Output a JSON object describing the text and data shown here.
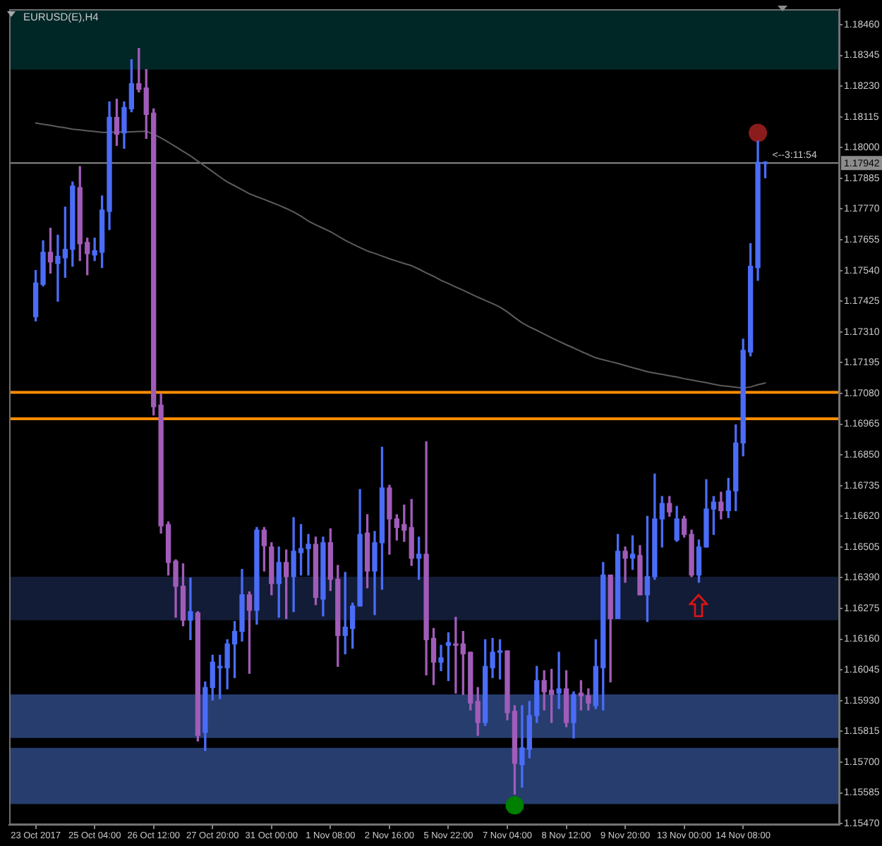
{
  "chart_data": {
    "type": "candlestick",
    "title": "EURUSD(E),H4",
    "categories": [
      "23 Oct 2017",
      null,
      null,
      null,
      null,
      null,
      null,
      null,
      "25 Oct 04:00",
      null,
      null,
      null,
      null,
      null,
      null,
      null,
      "26 Oct 12:00",
      null,
      null,
      null,
      null,
      null,
      null,
      null,
      "27 Oct 20:00",
      null,
      null,
      null,
      null,
      null,
      null,
      null,
      "31 Oct 00:00",
      null,
      null,
      null,
      null,
      null,
      null,
      null,
      "1 Nov 08:00",
      null,
      null,
      null,
      null,
      null,
      null,
      null,
      "2 Nov 16:00",
      null,
      null,
      null,
      null,
      null,
      null,
      null,
      "5 Nov 22:00",
      null,
      null,
      null,
      null,
      null,
      null,
      null,
      "7 Nov 04:00",
      null,
      null,
      null,
      null,
      null,
      null,
      null,
      "8 Nov 12:00",
      null,
      null,
      null,
      null,
      null,
      null,
      null,
      "9 Nov 20:00",
      null,
      null,
      null,
      null,
      null,
      null,
      null,
      "13 Nov 00:00",
      null,
      null,
      null,
      null,
      null,
      null,
      null,
      "14 Nov 08:00",
      null,
      null,
      null
    ],
    "ohlc": [
      [
        1.17367,
        1.1754,
        1.17351,
        1.17493
      ],
      [
        1.17488,
        1.17651,
        1.17482,
        1.17608
      ],
      [
        1.17608,
        1.17698,
        1.1753,
        1.17572
      ],
      [
        1.17566,
        1.17672,
        1.17425,
        1.17593
      ],
      [
        1.17587,
        1.17777,
        1.17514,
        1.17619
      ],
      [
        1.17619,
        1.17871,
        1.17556,
        1.17856
      ],
      [
        1.1785,
        1.17929,
        1.17577,
        1.1764
      ],
      [
        1.17645,
        1.17661,
        1.17524,
        1.17603
      ],
      [
        1.17598,
        1.17661,
        1.17577,
        1.17614
      ],
      [
        1.17608,
        1.17819,
        1.17551,
        1.17766
      ],
      [
        1.17761,
        1.18171,
        1.17693,
        1.18113
      ],
      [
        1.18113,
        1.18181,
        1.18008,
        1.1805
      ],
      [
        1.18055,
        1.18171,
        1.17997,
        1.1815
      ],
      [
        1.18145,
        1.18329,
        1.18134,
        1.18239
      ],
      [
        1.18239,
        1.18371,
        1.18208,
        1.18218
      ],
      [
        1.18223,
        1.18292,
        1.18034,
        1.18124
      ],
      [
        1.18129,
        1.18145,
        1.16999,
        1.1703
      ],
      [
        1.17036,
        1.17078,
        1.16557,
        1.16584
      ],
      [
        1.16589,
        1.16599,
        1.164,
        1.16447
      ],
      [
        1.16452,
        1.16457,
        1.16242,
        1.16358
      ],
      [
        1.16358,
        1.16442,
        1.1621,
        1.16231
      ],
      [
        1.16231,
        1.16389,
        1.16158,
        1.16263
      ],
      [
        1.16258,
        1.16263,
        1.15779,
        1.158
      ],
      [
        1.15811,
        1.16,
        1.15743,
        1.15979
      ],
      [
        1.15979,
        1.161,
        1.15932,
        1.16074
      ],
      [
        1.16053,
        1.161,
        1.15937,
        1.16058
      ],
      [
        1.16053,
        1.16158,
        1.15974,
        1.16142
      ],
      [
        1.16142,
        1.16226,
        1.16016,
        1.16189
      ],
      [
        1.16189,
        1.16421,
        1.16153,
        1.16326
      ],
      [
        1.16326,
        1.16337,
        1.16032,
        1.16268
      ],
      [
        1.16268,
        1.16578,
        1.16216,
        1.16568
      ],
      [
        1.16568,
        1.16578,
        1.16415,
        1.1651
      ],
      [
        1.16505,
        1.16521,
        1.16326,
        1.16368
      ],
      [
        1.16368,
        1.16505,
        1.16242,
        1.16447
      ],
      [
        1.16447,
        1.16494,
        1.16237,
        1.16394
      ],
      [
        1.16394,
        1.16615,
        1.16263,
        1.16489
      ],
      [
        1.16484,
        1.16589,
        1.164,
        1.16499
      ],
      [
        1.16499,
        1.16552,
        1.164,
        1.16515
      ],
      [
        1.16515,
        1.16542,
        1.16289,
        1.16316
      ],
      [
        1.1631,
        1.16542,
        1.16247,
        1.16521
      ],
      [
        1.16521,
        1.16573,
        1.16342,
        1.16384
      ],
      [
        1.16384,
        1.16436,
        1.16058,
        1.16174
      ],
      [
        1.16174,
        1.1641,
        1.16105,
        1.16205
      ],
      [
        1.162,
        1.16295,
        1.16126,
        1.16284
      ],
      [
        1.16284,
        1.1672,
        1.16284,
        1.16552
      ],
      [
        1.16557,
        1.16626,
        1.16352,
        1.16415
      ],
      [
        1.16415,
        1.16563,
        1.16252,
        1.16521
      ],
      [
        1.16521,
        1.16878,
        1.16347,
        1.16726
      ],
      [
        1.16726,
        1.16736,
        1.16478,
        1.1661
      ],
      [
        1.1661,
        1.16626,
        1.16531,
        1.16578
      ],
      [
        1.16589,
        1.16662,
        1.16526,
        1.16568
      ],
      [
        1.16578,
        1.16683,
        1.16436,
        1.16463
      ],
      [
        1.16463,
        1.16542,
        1.16384,
        1.16478
      ],
      [
        1.16478,
        1.16899,
        1.16026,
        1.16158
      ],
      [
        1.16163,
        1.162,
        1.1599,
        1.16074
      ],
      [
        1.16074,
        1.16137,
        1.16042,
        1.1609
      ],
      [
        1.16137,
        1.16184,
        1.16005,
        1.16147
      ],
      [
        1.16142,
        1.16242,
        1.15958,
        1.16137
      ],
      [
        1.16142,
        1.16189,
        1.15953,
        1.16105
      ],
      [
        1.16111,
        1.16111,
        1.15895,
        1.15921
      ],
      [
        1.15927,
        1.15979,
        1.158,
        1.15848
      ],
      [
        1.15848,
        1.16158,
        1.15837,
        1.16058
      ],
      [
        1.16053,
        1.16163,
        1.16016,
        1.16111
      ],
      [
        1.16111,
        1.16158,
        1.16011,
        1.16116
      ],
      [
        1.16116,
        1.16116,
        1.15858,
        1.15885
      ],
      [
        1.1589,
        1.15911,
        1.1558,
        1.15695
      ],
      [
        1.1569,
        1.15911,
        1.15606,
        1.15753
      ],
      [
        1.15748,
        1.15927,
        1.15716,
        1.15874
      ],
      [
        1.15874,
        1.16058,
        1.15848,
        1.16005
      ],
      [
        1.16005,
        1.16042,
        1.15895,
        1.15963
      ],
      [
        1.15969,
        1.16047,
        1.15848,
        1.15953
      ],
      [
        1.15958,
        1.16111,
        1.159,
        1.15974
      ],
      [
        1.15974,
        1.16042,
        1.15832,
        1.15848
      ],
      [
        1.15848,
        1.15963,
        1.1579,
        1.15953
      ],
      [
        1.15958,
        1.16005,
        1.15895,
        1.15948
      ],
      [
        1.15948,
        1.15974,
        1.15895,
        1.15921
      ],
      [
        1.15911,
        1.16158,
        1.159,
        1.16058
      ],
      [
        1.16053,
        1.16447,
        1.15895,
        1.164
      ],
      [
        1.164,
        1.164,
        1.16,
        1.16237
      ],
      [
        1.16237,
        1.16552,
        1.16237,
        1.16489
      ],
      [
        1.16489,
        1.16505,
        1.16373,
        1.16463
      ],
      [
        1.16463,
        1.16547,
        1.16421,
        1.16478
      ],
      [
        1.16473,
        1.1651,
        1.16326,
        1.16326
      ],
      [
        1.16326,
        1.1662,
        1.16226,
        1.16394
      ],
      [
        1.16394,
        1.16778,
        1.16384,
        1.1661
      ],
      [
        1.1661,
        1.16694,
        1.16505,
        1.16668
      ],
      [
        1.16668,
        1.16694,
        1.1662,
        1.16636
      ],
      [
        1.16531,
        1.16657,
        1.16526,
        1.1661
      ],
      [
        1.1661,
        1.1662,
        1.16542,
        1.16552
      ],
      [
        1.16552,
        1.16568,
        1.16394,
        1.164
      ],
      [
        1.164,
        1.16531,
        1.16373,
        1.16505
      ],
      [
        1.16505,
        1.16757,
        1.16505,
        1.16647
      ],
      [
        1.16647,
        1.16694,
        1.16552,
        1.16673
      ],
      [
        1.16673,
        1.1671,
        1.1661,
        1.16641
      ],
      [
        1.16641,
        1.16762,
        1.16615,
        1.16715
      ],
      [
        1.16715,
        1.16962,
        1.16641,
        1.16894
      ],
      [
        1.16894,
        1.17283,
        1.16846,
        1.17241
      ],
      [
        1.17235,
        1.1764,
        1.1722,
        1.17556
      ],
      [
        1.17551,
        1.18024,
        1.17503,
        1.17945
      ],
      [
        1.1794,
        1.17947,
        1.17887,
        1.17942
      ]
    ],
    "colors": [
      "#4a6cf7",
      "#4a6cf7",
      "#a05cb8",
      "#4a6cf7",
      "#4a6cf7",
      "#4a6cf7",
      "#a05cb8",
      "#a05cb8",
      "#4a6cf7",
      "#4a6cf7",
      "#4a6cf7",
      "#a05cb8",
      "#4a6cf7",
      "#4a6cf7",
      "#a05cb8",
      "#a05cb8",
      "#a05cb8",
      "#a05cb8",
      "#a05cb8",
      "#a05cb8",
      "#a05cb8",
      "#4a6cf7",
      "#a05cb8",
      "#4a6cf7",
      "#4a6cf7",
      "#4a6cf7",
      "#4a6cf7",
      "#4a6cf7",
      "#4a6cf7",
      "#a05cb8",
      "#4a6cf7",
      "#a05cb8",
      "#a05cb8",
      "#4a6cf7",
      "#a05cb8",
      "#4a6cf7",
      "#4a6cf7",
      "#4a6cf7",
      "#a05cb8",
      "#4a6cf7",
      "#a05cb8",
      "#a05cb8",
      "#4a6cf7",
      "#4a6cf7",
      "#4a6cf7",
      "#a05cb8",
      "#4a6cf7",
      "#4a6cf7",
      "#a05cb8",
      "#a05cb8",
      "#a05cb8",
      "#a05cb8",
      "#4a6cf7",
      "#a05cb8",
      "#a05cb8",
      "#4a6cf7",
      "#4a6cf7",
      "#a05cb8",
      "#a05cb8",
      "#a05cb8",
      "#a05cb8",
      "#4a6cf7",
      "#4a6cf7",
      "#4a6cf7",
      "#a05cb8",
      "#a05cb8",
      "#4a6cf7",
      "#4a6cf7",
      "#4a6cf7",
      "#a05cb8",
      "#a05cb8",
      "#4a6cf7",
      "#a05cb8",
      "#4a6cf7",
      "#a05cb8",
      "#a05cb8",
      "#4a6cf7",
      "#4a6cf7",
      "#a05cb8",
      "#4a6cf7",
      "#a05cb8",
      "#4a6cf7",
      "#a05cb8",
      "#4a6cf7",
      "#4a6cf7",
      "#4a6cf7",
      "#a05cb8",
      "#4a6cf7",
      "#a05cb8",
      "#a05cb8",
      "#4a6cf7",
      "#4a6cf7",
      "#4a6cf7",
      "#a05cb8",
      "#4a6cf7",
      "#4a6cf7",
      "#4a6cf7",
      "#4a6cf7",
      "#4a6cf7",
      "#4a6cf7"
    ],
    "series": [
      {
        "type": "line",
        "color": "#5c5c5c",
        "values": [
          1.18092,
          1.18087,
          1.18083,
          1.18078,
          1.18074,
          1.18069,
          1.18066,
          1.18063,
          1.1806,
          1.18057,
          1.18057,
          1.18058,
          1.18058,
          1.18059,
          1.1806,
          1.18061,
          1.1805,
          1.18036,
          1.1802,
          1.18003,
          1.17986,
          1.17969,
          1.17949,
          1.1793,
          1.1791,
          1.1789,
          1.17871,
          1.17857,
          1.17842,
          1.17827,
          1.17816,
          1.17806,
          1.17795,
          1.17784,
          1.17772,
          1.17759,
          1.17743,
          1.17725,
          1.17711,
          1.17698,
          1.17685,
          1.17669,
          1.17653,
          1.17639,
          1.17626,
          1.17613,
          1.17604,
          1.17594,
          1.17584,
          1.17575,
          1.17566,
          1.17558,
          1.17545,
          1.17531,
          1.17518,
          1.17503,
          1.17491,
          1.17478,
          1.17466,
          1.17453,
          1.1744,
          1.17428,
          1.17416,
          1.17403,
          1.17385,
          1.17364,
          1.17344,
          1.17329,
          1.17316,
          1.17302,
          1.17288,
          1.17275,
          1.17262,
          1.1725,
          1.17237,
          1.17225,
          1.17213,
          1.17206,
          1.17199,
          1.17192,
          1.17184,
          1.17176,
          1.17169,
          1.17161,
          1.17156,
          1.17151,
          1.17146,
          1.17141,
          1.17135,
          1.1713,
          1.17125,
          1.1712,
          1.17114,
          1.17109,
          1.17106,
          1.17103,
          1.171,
          1.17104,
          1.17112,
          1.17119
        ]
      },
      {
        "type": "scatter",
        "color": "#8b1c1c",
        "marker": "circle",
        "values": [
          null,
          null,
          null,
          null,
          null,
          null,
          null,
          null,
          null,
          null,
          null,
          null,
          null,
          null,
          null,
          null,
          null,
          null,
          null,
          null,
          null,
          null,
          null,
          null,
          null,
          null,
          null,
          null,
          null,
          null,
          null,
          null,
          null,
          null,
          null,
          null,
          null,
          null,
          null,
          null,
          null,
          null,
          null,
          null,
          null,
          null,
          null,
          null,
          null,
          null,
          null,
          null,
          null,
          null,
          null,
          null,
          null,
          null,
          null,
          null,
          null,
          null,
          null,
          null,
          null,
          null,
          null,
          null,
          null,
          null,
          null,
          null,
          null,
          null,
          null,
          null,
          null,
          null,
          null,
          null,
          null,
          null,
          null,
          null,
          null,
          null,
          null,
          null,
          null,
          null,
          null,
          null,
          null,
          null,
          null,
          null,
          null,
          null,
          1.18055,
          null
        ]
      },
      {
        "type": "scatter",
        "color": "#007f00",
        "marker": "circle",
        "values": [
          null,
          null,
          null,
          null,
          null,
          null,
          null,
          null,
          null,
          null,
          null,
          null,
          null,
          null,
          null,
          null,
          null,
          null,
          null,
          null,
          null,
          null,
          null,
          null,
          null,
          null,
          null,
          null,
          null,
          null,
          null,
          null,
          null,
          null,
          null,
          null,
          null,
          null,
          null,
          null,
          null,
          null,
          null,
          null,
          null,
          null,
          null,
          null,
          null,
          null,
          null,
          null,
          null,
          null,
          null,
          null,
          null,
          null,
          null,
          null,
          null,
          null,
          null,
          null,
          null,
          1.15538,
          null,
          null,
          null,
          null,
          null,
          null,
          null,
          null,
          null,
          null,
          null,
          null,
          null,
          null,
          null,
          null,
          null,
          null,
          null,
          null,
          null,
          null,
          null,
          null,
          null,
          null,
          null,
          null,
          null,
          null,
          null,
          null,
          null,
          null
        ]
      }
    ],
    "ylim": [
      1.15465,
      1.18518
    ],
    "yticks": [
      {
        "value": 1.1547,
        "label": "1.15470"
      },
      1.15585,
      {
        "value": 1.157,
        "label": "1.15700"
      },
      1.15815,
      {
        "value": 1.1593,
        "label": "1.15930"
      },
      1.16045,
      {
        "value": 1.1616,
        "label": "1.16160"
      },
      1.16275,
      {
        "value": 1.1639,
        "label": "1.16390"
      },
      1.16505,
      {
        "value": 1.1662,
        "label": "1.16620"
      },
      1.16735,
      {
        "value": 1.1685,
        "label": "1.16850"
      },
      1.16965,
      {
        "value": 1.1708,
        "label": "1.17080"
      },
      1.17195,
      {
        "value": 1.1731,
        "label": "1.17310"
      },
      1.17425,
      {
        "value": 1.1754,
        "label": "1.17540"
      },
      1.17655,
      {
        "value": 1.1777,
        "label": "1.17770"
      },
      1.17885,
      {
        "value": 1.18,
        "label": "1.18000"
      },
      1.18115,
      {
        "value": 1.1823,
        "label": "1.18230"
      },
      1.18345,
      {
        "value": 1.1846,
        "label": "1.18460"
      }
    ],
    "bands": [
      {
        "axis": "y",
        "from": 1.18292,
        "to": 1.18518,
        "color": "#012626"
      },
      {
        "axis": "y",
        "from": 1.16231,
        "to": 1.16394,
        "color": "#131c36"
      },
      {
        "axis": "y",
        "from": 1.1579,
        "to": 1.15953,
        "color": "#263d6e"
      },
      {
        "axis": "y",
        "from": 1.15543,
        "to": 1.15753,
        "color": "#263d6e"
      }
    ],
    "ref_lines": [
      {
        "axis": "y",
        "value": 1.17942,
        "label": "1.17942",
        "color": "#8c8c8c"
      },
      {
        "axis": "y",
        "value": 1.17084,
        "color": "#ff8c00"
      },
      {
        "axis": "y",
        "value": 1.16985,
        "color": "#ff8c00"
      }
    ],
    "annotations": [
      {
        "text": "<--3:11:54",
        "y": 1.17942
      }
    ]
  }
}
